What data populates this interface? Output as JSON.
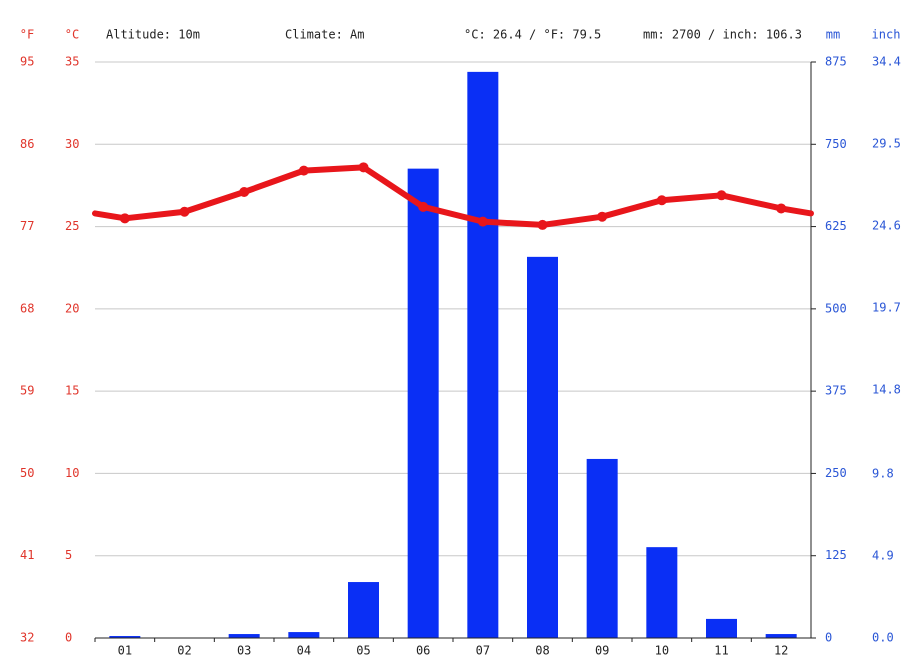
{
  "chart_data": {
    "type": "climate",
    "y_units": [
      "°F",
      "°C"
    ],
    "y2_units": [
      "mm",
      "inch"
    ],
    "info": [
      "Altitude: 10m",
      "Climate: Am",
      "°C: 26.4 / °F: 79.5",
      "mm: 2700 / inch: 106.3"
    ],
    "categories": [
      "01",
      "02",
      "03",
      "04",
      "05",
      "06",
      "07",
      "08",
      "09",
      "10",
      "11",
      "12"
    ],
    "temperature": {
      "color": "#e8161b",
      "values": [
        25.5,
        25.9,
        27.1,
        28.4,
        28.6,
        26.2,
        25.3,
        25.1,
        25.6,
        26.6,
        26.9,
        26.1
      ]
    },
    "precipitation": {
      "color": "#0a2ff5",
      "values": [
        3,
        0,
        6,
        9,
        85,
        713,
        860,
        579,
        272,
        138,
        29,
        6
      ]
    },
    "ylim": [
      0,
      35
    ],
    "yticks": [
      0,
      5,
      10,
      15,
      20,
      25,
      30,
      35
    ],
    "yflim": [
      32,
      95
    ],
    "yfticks": [
      32,
      41,
      50,
      59,
      68,
      77,
      86,
      95
    ],
    "y2lim": [
      0,
      875
    ],
    "y2ticks": [
      0,
      125,
      250,
      375,
      500,
      625,
      750,
      875
    ],
    "y2inchlim": [
      0,
      34.4
    ],
    "y2inchticks": [
      {
        "value": 0,
        "label": "0.0"
      },
      4.9,
      9.8,
      14.8,
      19.7,
      24.6,
      29.5,
      34.4
    ],
    "grid": true
  }
}
